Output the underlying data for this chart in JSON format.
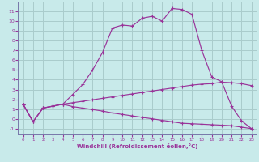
{
  "title": "",
  "xlabel": "Windchill (Refroidissement éolien,°C)",
  "bg_color": "#c8eaea",
  "grid_color": "#aacccc",
  "line_color": "#993399",
  "spine_color": "#7777aa",
  "xlim": [
    -0.5,
    23.5
  ],
  "ylim": [
    -1.6,
    12.0
  ],
  "xticks": [
    0,
    1,
    2,
    3,
    4,
    5,
    6,
    7,
    8,
    9,
    10,
    11,
    12,
    13,
    14,
    15,
    16,
    17,
    18,
    19,
    20,
    21,
    22,
    23
  ],
  "yticks": [
    -1,
    0,
    1,
    2,
    3,
    4,
    5,
    6,
    7,
    8,
    9,
    10,
    11
  ],
  "line1_x": [
    0,
    1,
    2,
    3,
    4,
    5,
    6,
    7,
    8,
    9,
    10,
    11,
    12,
    13,
    14,
    15,
    16,
    17,
    18,
    19,
    20,
    21,
    22,
    23
  ],
  "line1_y": [
    1.5,
    -0.3,
    1.1,
    1.3,
    1.5,
    2.5,
    3.5,
    5.0,
    6.8,
    9.3,
    9.6,
    9.5,
    10.3,
    10.5,
    10.0,
    11.3,
    11.2,
    10.7,
    7.0,
    4.3,
    3.8,
    1.3,
    -0.2,
    -1.0
  ],
  "line2_x": [
    0,
    1,
    2,
    3,
    4,
    5,
    6,
    7,
    8,
    9,
    10,
    11,
    12,
    13,
    14,
    15,
    16,
    17,
    18,
    19,
    20,
    21,
    22,
    23
  ],
  "line2_y": [
    1.5,
    -0.3,
    1.1,
    1.3,
    1.5,
    1.65,
    1.8,
    1.95,
    2.1,
    2.25,
    2.4,
    2.55,
    2.7,
    2.85,
    3.0,
    3.15,
    3.3,
    3.45,
    3.55,
    3.6,
    3.75,
    3.7,
    3.6,
    3.4
  ],
  "line3_x": [
    0,
    1,
    2,
    3,
    4,
    5,
    6,
    7,
    8,
    9,
    10,
    11,
    12,
    13,
    14,
    15,
    16,
    17,
    18,
    19,
    20,
    21,
    22,
    23
  ],
  "line3_y": [
    1.5,
    -0.3,
    1.1,
    1.3,
    1.5,
    1.25,
    1.1,
    0.95,
    0.8,
    0.6,
    0.45,
    0.3,
    0.15,
    0.0,
    -0.15,
    -0.3,
    -0.45,
    -0.5,
    -0.55,
    -0.6,
    -0.65,
    -0.7,
    -0.85,
    -1.0
  ]
}
